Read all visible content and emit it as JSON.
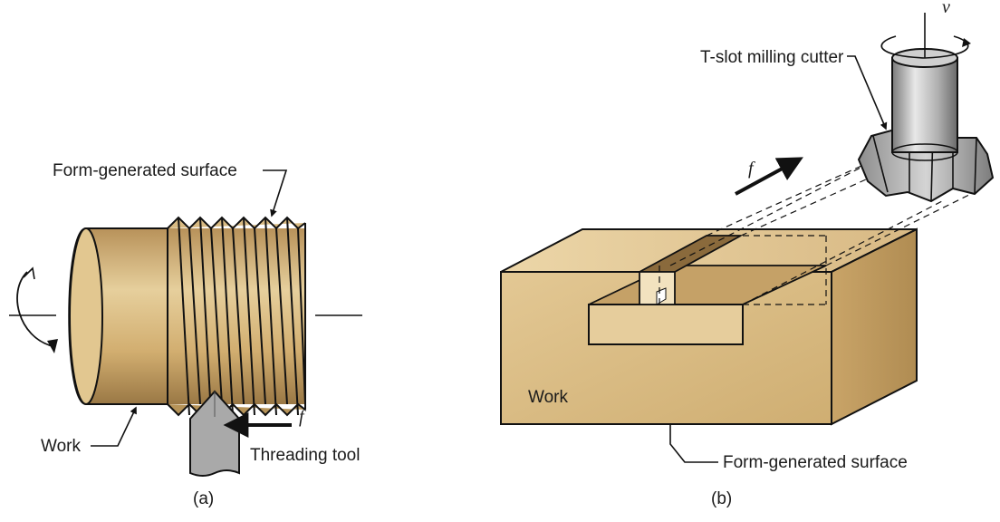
{
  "panel_a": {
    "caption": "(a)",
    "form_surface_label": "Form-generated surface",
    "work_label": "Work",
    "tool_label": "Threading tool",
    "feed_symbol": "f"
  },
  "panel_b": {
    "caption": "(b)",
    "cutter_label": "T-slot milling cutter",
    "speed_symbol": "v",
    "feed_symbol": "f",
    "work_label": "Work",
    "form_surface_label": "Form-generated surface"
  },
  "colors": {
    "work_fill": "#d9b97c",
    "work_dark": "#a8844a",
    "tool_fill": "#a9a9a9",
    "cutter_fill": "#b8b8b8",
    "outline": "#111111"
  }
}
